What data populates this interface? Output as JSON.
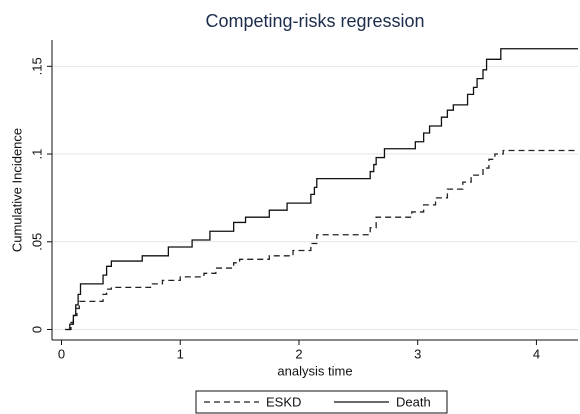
{
  "chart_data": {
    "type": "line",
    "step": true,
    "title": "Competing-risks regression",
    "x_label": "analysis time",
    "y_label": "Cumulative Incidence",
    "xlim": [
      -0.08,
      4.35
    ],
    "ylim": [
      -0.006,
      0.165
    ],
    "xticks": [
      0,
      1,
      2,
      3,
      4
    ],
    "yticks": [
      0,
      {
        "value": 0.05,
        "label": ".05"
      },
      {
        "value": 0.1,
        "label": ".1"
      },
      {
        "value": 0.15,
        "label": ".15"
      }
    ],
    "grid": true,
    "legend": "bottom",
    "series": [
      {
        "name": "ESKD",
        "color": "#222222",
        "dashed": true,
        "x": [
          0.05,
          0.08,
          0.1,
          0.13,
          0.15,
          0.35,
          0.38,
          0.42,
          0.75,
          0.85,
          1.0,
          1.2,
          1.3,
          1.45,
          1.5,
          1.75,
          1.95,
          2.1,
          2.15,
          2.6,
          2.65,
          2.95,
          3.05,
          3.15,
          3.25,
          3.38,
          3.45,
          3.55,
          3.6,
          3.65,
          3.72,
          4.35
        ],
        "values": [
          0,
          0.004,
          0.008,
          0.012,
          0.016,
          0.02,
          0.023,
          0.024,
          0.026,
          0.028,
          0.03,
          0.032,
          0.035,
          0.038,
          0.04,
          0.042,
          0.045,
          0.049,
          0.054,
          0.058,
          0.064,
          0.067,
          0.071,
          0.075,
          0.08,
          0.084,
          0.088,
          0.092,
          0.097,
          0.1,
          0.102,
          0.102
        ]
      },
      {
        "name": "Death",
        "color": "#111111",
        "dashed": false,
        "x": [
          0.03,
          0.07,
          0.1,
          0.12,
          0.14,
          0.16,
          0.35,
          0.38,
          0.42,
          0.68,
          0.9,
          1.1,
          1.25,
          1.45,
          1.55,
          1.75,
          1.9,
          2.1,
          2.13,
          2.15,
          2.6,
          2.63,
          2.65,
          2.72,
          2.98,
          3.05,
          3.1,
          3.2,
          3.25,
          3.3,
          3.42,
          3.47,
          3.5,
          3.55,
          3.58,
          3.7,
          4.35
        ],
        "values": [
          0,
          0.003,
          0.008,
          0.014,
          0.02,
          0.026,
          0.031,
          0.036,
          0.039,
          0.042,
          0.047,
          0.051,
          0.056,
          0.061,
          0.064,
          0.068,
          0.072,
          0.077,
          0.081,
          0.086,
          0.09,
          0.094,
          0.098,
          0.103,
          0.107,
          0.112,
          0.116,
          0.121,
          0.125,
          0.128,
          0.134,
          0.138,
          0.143,
          0.148,
          0.154,
          0.16,
          0.16
        ]
      }
    ]
  }
}
